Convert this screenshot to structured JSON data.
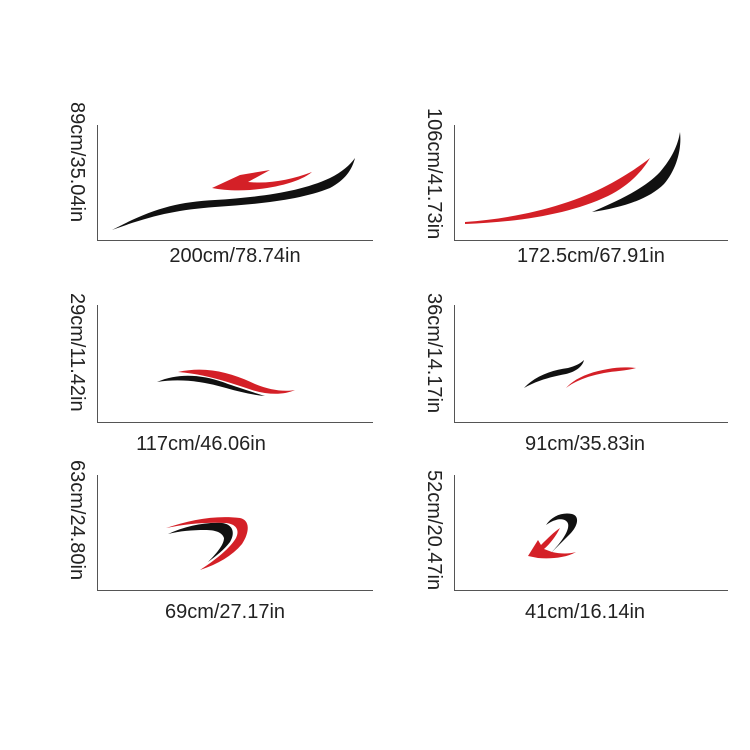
{
  "panels": [
    {
      "id": "p1",
      "width_label": "200cm/78.74in",
      "height_label": "89cm/35.04in",
      "colors": [
        "#111111",
        "#d42027"
      ]
    },
    {
      "id": "p2",
      "width_label": "172.5cm/67.91in",
      "height_label": "106cm/41.73in",
      "colors": [
        "#111111",
        "#d42027"
      ]
    },
    {
      "id": "p3",
      "width_label": "117cm/46.06in",
      "height_label": "29cm/11.42in",
      "colors": [
        "#111111",
        "#d42027"
      ]
    },
    {
      "id": "p4",
      "width_label": "91cm/35.83in",
      "height_label": "36cm/14.17in",
      "colors": [
        "#111111",
        "#d42027"
      ]
    },
    {
      "id": "p5",
      "width_label": "69cm/27.17in",
      "height_label": "63cm/24.80in",
      "colors": [
        "#111111",
        "#d42027"
      ]
    },
    {
      "id": "p6",
      "width_label": "41cm/16.14in",
      "height_label": "52cm/20.47in",
      "colors": [
        "#111111",
        "#d42027"
      ]
    }
  ]
}
